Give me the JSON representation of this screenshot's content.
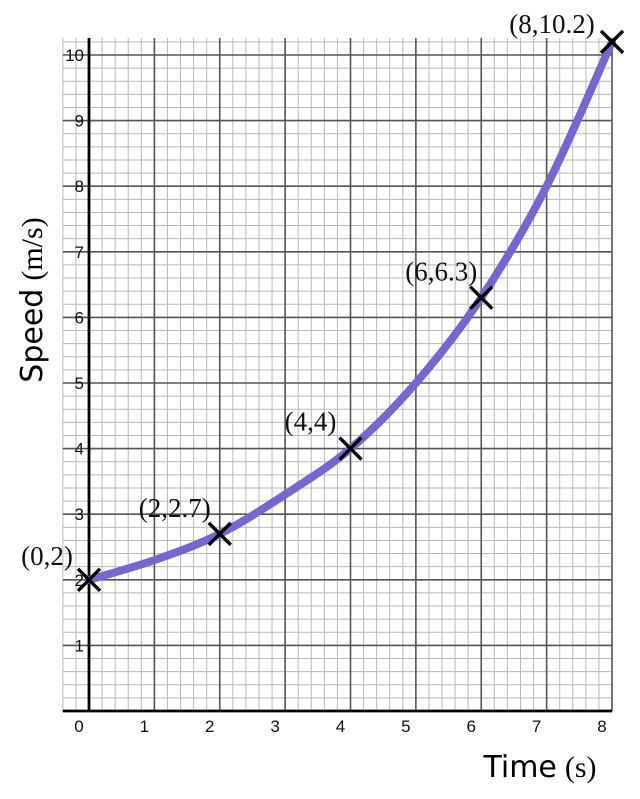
{
  "chart_data": {
    "type": "line",
    "title": "",
    "xlabel": "Time",
    "xlabel_unit": "(s)",
    "ylabel": "Speed",
    "ylabel_unit": "(m/s)",
    "xlim": [
      0,
      8
    ],
    "ylim": [
      0,
      10
    ],
    "grid": true,
    "x_ticks": [
      "0",
      "1",
      "2",
      "3",
      "4",
      "5",
      "6",
      "7",
      "8"
    ],
    "y_ticks": [
      "1",
      "2",
      "3",
      "4",
      "5",
      "6",
      "7",
      "8",
      "9",
      "10"
    ],
    "series": [
      {
        "color": "#7466d4",
        "x": [
          0,
          1,
          2,
          3,
          4,
          5,
          6,
          7,
          8
        ],
        "y": [
          2,
          2.3,
          2.7,
          3.3,
          4,
          5,
          6.3,
          8,
          10.2
        ]
      }
    ],
    "marked_points": [
      {
        "x": 0,
        "y": 2,
        "label": "(0,2)"
      },
      {
        "x": 2,
        "y": 2.7,
        "label": "(2,2.7)"
      },
      {
        "x": 4,
        "y": 4,
        "label": "(4,4)"
      },
      {
        "x": 6,
        "y": 6.3,
        "label": "(6,6.3)"
      },
      {
        "x": 8,
        "y": 10.2,
        "label": "(8,10.2)"
      }
    ]
  }
}
